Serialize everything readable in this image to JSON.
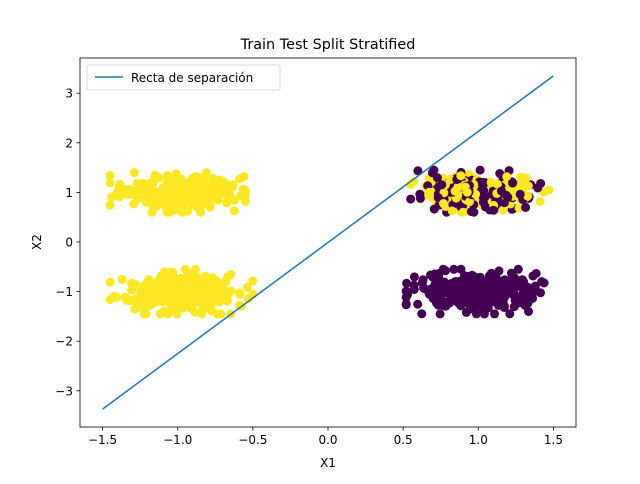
{
  "chart_data": {
    "type": "scatter",
    "title": "Train Test Split Stratified",
    "xlabel": "X1",
    "ylabel": "X2",
    "xlim": [
      -1.65,
      1.65
    ],
    "ylim": [
      -3.73,
      3.71
    ],
    "x_ticks": [
      -1.5,
      -1.0,
      -0.5,
      0.0,
      0.5,
      1.0,
      1.5
    ],
    "x_tick_labels": [
      "−1.5",
      "−1.0",
      "−0.5",
      "0.0",
      "0.5",
      "1.0",
      "1.5"
    ],
    "y_ticks": [
      -3,
      -2,
      -1,
      0,
      1,
      2,
      3
    ],
    "y_tick_labels": [
      "−3",
      "−2",
      "−1",
      "0",
      "1",
      "2",
      "3"
    ],
    "grid": false,
    "legend": {
      "placement": "top-left",
      "entries": [
        "Recta de separación"
      ]
    },
    "line": {
      "name": "Recta de separación",
      "color": "#1f77b4",
      "x": [
        -1.5,
        1.5
      ],
      "y": [
        -3.37,
        3.35
      ]
    },
    "clusters": [
      {
        "center": [
          -1.0,
          1.0
        ],
        "x_range": [
          -1.45,
          -0.55
        ],
        "y_range": [
          0.6,
          1.4
        ],
        "classes": [
          "yellow"
        ],
        "points": 300
      },
      {
        "center": [
          -1.0,
          -1.0
        ],
        "x_range": [
          -1.45,
          -0.5
        ],
        "y_range": [
          -1.45,
          -0.55
        ],
        "classes": [
          "yellow"
        ],
        "points": 300
      },
      {
        "center": [
          1.0,
          1.0
        ],
        "x_range": [
          0.55,
          1.47
        ],
        "y_range": [
          0.6,
          1.45
        ],
        "classes": [
          "purple",
          "yellow"
        ],
        "points": 300
      },
      {
        "center": [
          1.0,
          -1.0
        ],
        "x_range": [
          0.52,
          1.48
        ],
        "y_range": [
          -1.45,
          -0.55
        ],
        "classes": [
          "purple"
        ],
        "points": 300
      }
    ],
    "class_colors": {
      "yellow": "#fde725",
      "purple": "#440154"
    }
  }
}
